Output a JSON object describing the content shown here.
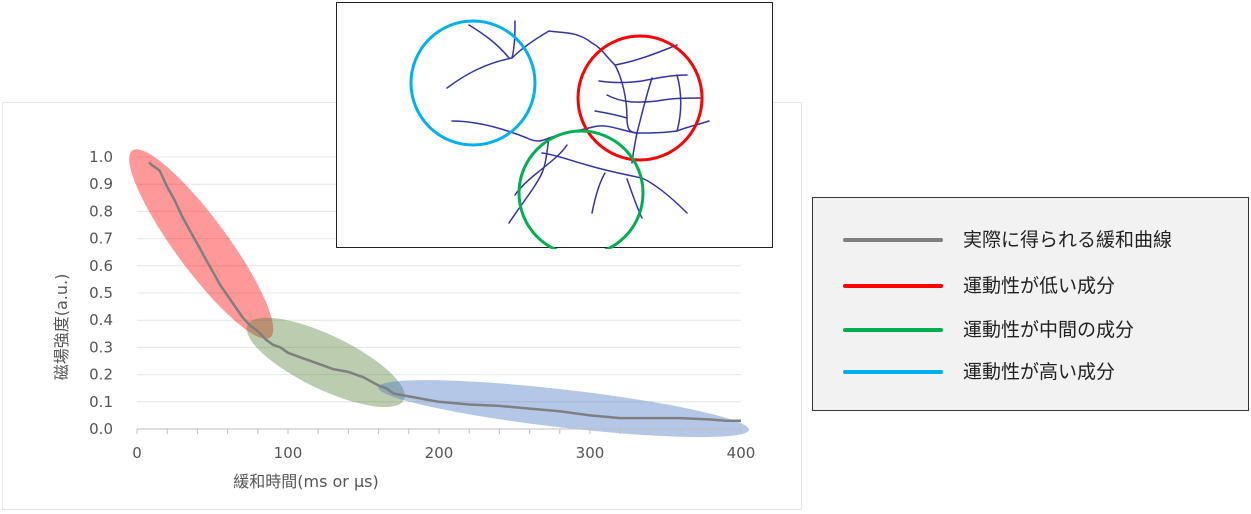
{
  "chart_data": {
    "type": "line",
    "title": "",
    "xlabel": "緩和時間(ms or µs)",
    "ylabel": "磁場強度(a.u.)",
    "xlim": [
      0,
      400
    ],
    "ylim": [
      0.0,
      1.0
    ],
    "x_ticks": [
      0,
      100,
      200,
      300,
      400
    ],
    "y_ticks": [
      0.0,
      0.1,
      0.2,
      0.3,
      0.4,
      0.5,
      0.6,
      0.7,
      0.8,
      0.9,
      1.0
    ],
    "grid": "horizontal",
    "series": [
      {
        "name": "実際に得られる緩和曲線",
        "color": "#7f7f7f",
        "x": [
          8,
          10,
          15,
          20,
          25,
          30,
          35,
          40,
          45,
          50,
          55,
          60,
          65,
          70,
          75,
          80,
          85,
          90,
          95,
          100,
          110,
          120,
          130,
          140,
          150,
          160,
          165,
          170,
          180,
          190,
          200,
          220,
          240,
          260,
          280,
          300,
          320,
          340,
          360,
          380,
          390,
          400
        ],
        "y": [
          0.98,
          0.97,
          0.95,
          0.89,
          0.84,
          0.78,
          0.73,
          0.68,
          0.63,
          0.58,
          0.53,
          0.49,
          0.45,
          0.41,
          0.38,
          0.36,
          0.33,
          0.31,
          0.3,
          0.28,
          0.26,
          0.24,
          0.22,
          0.21,
          0.19,
          0.16,
          0.15,
          0.13,
          0.12,
          0.11,
          0.1,
          0.09,
          0.085,
          0.075,
          0.065,
          0.05,
          0.04,
          0.04,
          0.04,
          0.035,
          0.03,
          0.03
        ]
      }
    ],
    "regions": [
      {
        "name": "運動性が低い成分",
        "color": "#ff0000",
        "x_range": [
          0,
          85
        ],
        "y_range": [
          0.36,
          1.0
        ]
      },
      {
        "name": "運動性が中間の成分",
        "color": "#548235",
        "x_range": [
          78,
          172
        ],
        "y_range": [
          0.12,
          0.37
        ]
      },
      {
        "name": "運動性が高い成分",
        "color": "#4472c4",
        "x_range": [
          165,
          400
        ],
        "y_range": [
          0.0,
          0.15
        ]
      }
    ]
  },
  "legend": {
    "items": [
      {
        "label": "実際に得られる緩和曲線",
        "color": "#7f7f7f"
      },
      {
        "label": "運動性が低い成分",
        "color": "#ff0000"
      },
      {
        "label": "運動性が中間の成分",
        "color": "#00b050"
      },
      {
        "label": "運動性が高い成分",
        "color": "#00b0f0"
      }
    ]
  },
  "network_diagram": {
    "line_color": "#3333aa",
    "circles": [
      {
        "name": "high-mobility-circle",
        "color": "#00b0f0"
      },
      {
        "name": "low-mobility-circle",
        "color": "#ff0000"
      },
      {
        "name": "mid-mobility-circle",
        "color": "#00b050"
      }
    ]
  }
}
